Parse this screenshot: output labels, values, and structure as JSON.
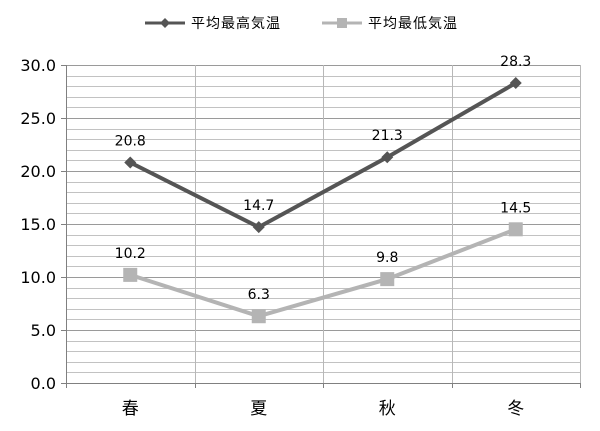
{
  "chart_data": {
    "type": "line",
    "categories": [
      "春",
      "夏",
      "秋",
      "冬"
    ],
    "series": [
      {
        "name": "平均最高気温",
        "values": [
          20.8,
          14.7,
          21.3,
          28.3
        ],
        "color": "#555555",
        "marker": "diamond"
      },
      {
        "name": "平均最低気温",
        "values": [
          10.2,
          6.3,
          9.8,
          14.5
        ],
        "color": "#b4b4b4",
        "marker": "square"
      }
    ],
    "ylim": [
      0,
      30
    ],
    "yticks": [
      "0.0",
      "5.0",
      "10.0",
      "15.0",
      "20.0",
      "25.0",
      "30.0"
    ],
    "grid": true,
    "legend_position": "top-center",
    "data_labels": true
  }
}
